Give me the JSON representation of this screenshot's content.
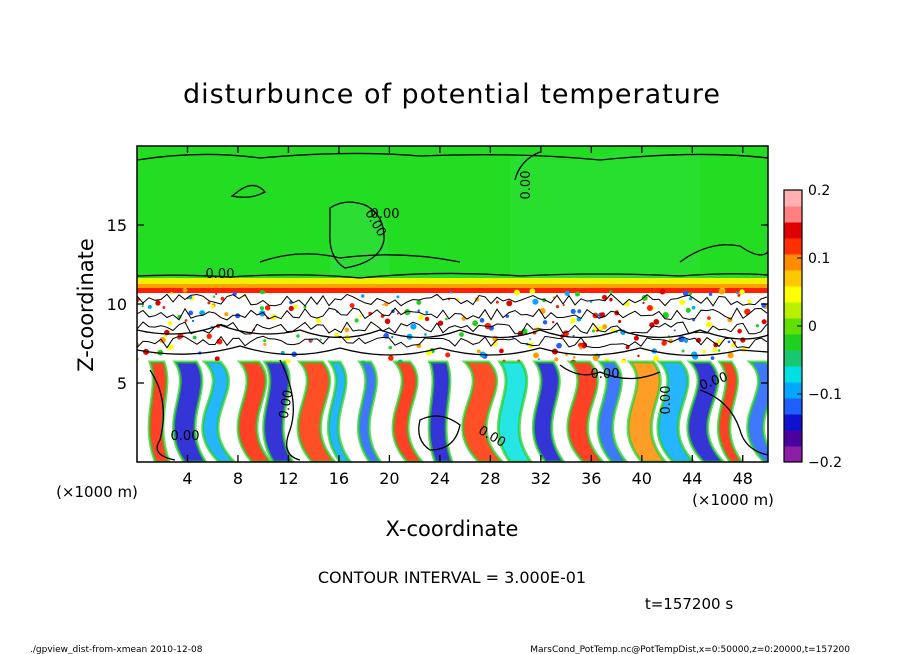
{
  "chart_data": {
    "type": "heatmap",
    "title": "disturbunce of potential temperature",
    "xlabel": "X-coordinate",
    "ylabel": "Z-coordinate",
    "x_unit": "(×1000 m)",
    "y_unit": "(×1000 m)",
    "x_ticks": [
      4,
      8,
      12,
      16,
      20,
      24,
      28,
      32,
      36,
      40,
      44,
      48
    ],
    "y_ticks": [
      5,
      10,
      15
    ],
    "xlim": [
      0,
      50
    ],
    "ylim": [
      0,
      20
    ],
    "colorbar": {
      "ticks": [
        0.2,
        0.1,
        0,
        -0.1,
        -0.2
      ],
      "tick_labels": [
        "0.2",
        "0.1",
        "0",
        "−0.1",
        "−0.2"
      ],
      "range": [
        -0.2,
        0.2
      ],
      "colors": [
        "#8b1fa8",
        "#4b00a0",
        "#1010d0",
        "#1f5fff",
        "#00a8ff",
        "#00e0e0",
        "#18c870",
        "#20d020",
        "#60e000",
        "#b8f000",
        "#ffff00",
        "#ffc800",
        "#ff8c00",
        "#ff3000",
        "#e00000",
        "#ff8080",
        "#ffb0b0"
      ]
    },
    "contour_labels": [
      "0.00",
      "0.00",
      "0.00",
      "0.00",
      "0.00",
      "0.00",
      "0.00",
      "0.00",
      "0.00",
      "0.00"
    ],
    "contour_interval_text": "CONTOUR INTERVAL = 3.000E-01",
    "time_text": "t=157200 s"
  },
  "footer": {
    "left": "./gpview_dist-from-xmean 2010-12-08",
    "right": "MarsCond_PotTemp.nc@PotTempDist,x=0:50000,z=0:20000,t=157200"
  },
  "colors": {
    "upper_field": "#22dd22",
    "band_red": "#ff2000",
    "band_orange": "#ffa000",
    "lower_field": "#ffffff"
  }
}
